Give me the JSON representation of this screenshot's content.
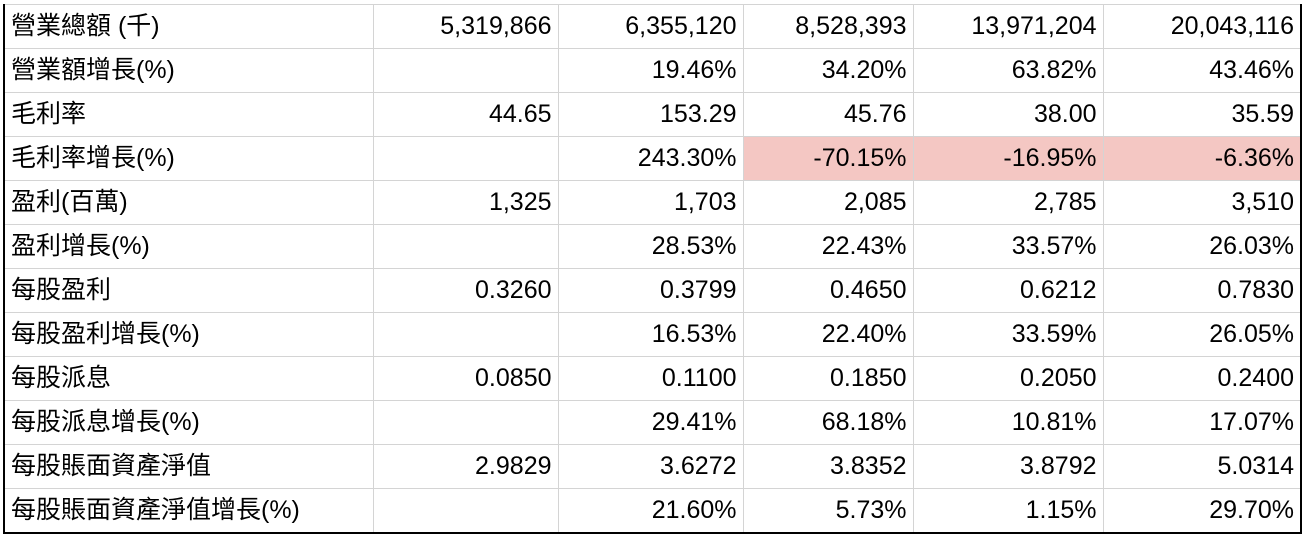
{
  "table": {
    "rows": [
      {
        "label": "營業總額 (千)",
        "values": [
          "5,319,866",
          "6,355,120",
          "8,528,393",
          "13,971,204",
          "20,043,116"
        ]
      },
      {
        "label": "營業額增長(%)",
        "values": [
          "",
          "19.46%",
          "34.20%",
          "63.82%",
          "43.46%"
        ]
      },
      {
        "label": "毛利率",
        "values": [
          "44.65",
          "153.29",
          "45.76",
          "38.00",
          "35.59"
        ]
      },
      {
        "label": "毛利率增長(%)",
        "values": [
          "",
          "243.30%",
          "-70.15%",
          "-16.95%",
          "-6.36%"
        ]
      },
      {
        "label": "盈利(百萬)",
        "values": [
          "1,325",
          "1,703",
          "2,085",
          "2,785",
          "3,510"
        ]
      },
      {
        "label": "盈利增長(%)",
        "values": [
          "",
          "28.53%",
          "22.43%",
          "33.57%",
          "26.03%"
        ]
      },
      {
        "label": "每股盈利",
        "values": [
          "0.3260",
          "0.3799",
          "0.4650",
          "0.6212",
          "0.7830"
        ]
      },
      {
        "label": "每股盈利增長(%)",
        "values": [
          "",
          "16.53%",
          "22.40%",
          "33.59%",
          "26.05%"
        ]
      },
      {
        "label": "每股派息",
        "values": [
          "0.0850",
          "0.1100",
          "0.1850",
          "0.2050",
          "0.2400"
        ]
      },
      {
        "label": "每股派息增長(%)",
        "values": [
          "",
          "29.41%",
          "68.18%",
          "10.81%",
          "17.07%"
        ]
      },
      {
        "label": "每股賬面資產淨值",
        "values": [
          "2.9829",
          "3.6272",
          "3.8352",
          "3.8792",
          "5.0314"
        ]
      },
      {
        "label": "每股賬面資產淨值增長(%)",
        "values": [
          "",
          "21.60%",
          "5.73%",
          "1.15%",
          "29.70%"
        ]
      }
    ],
    "highlight_color": "#f4c7c3"
  }
}
